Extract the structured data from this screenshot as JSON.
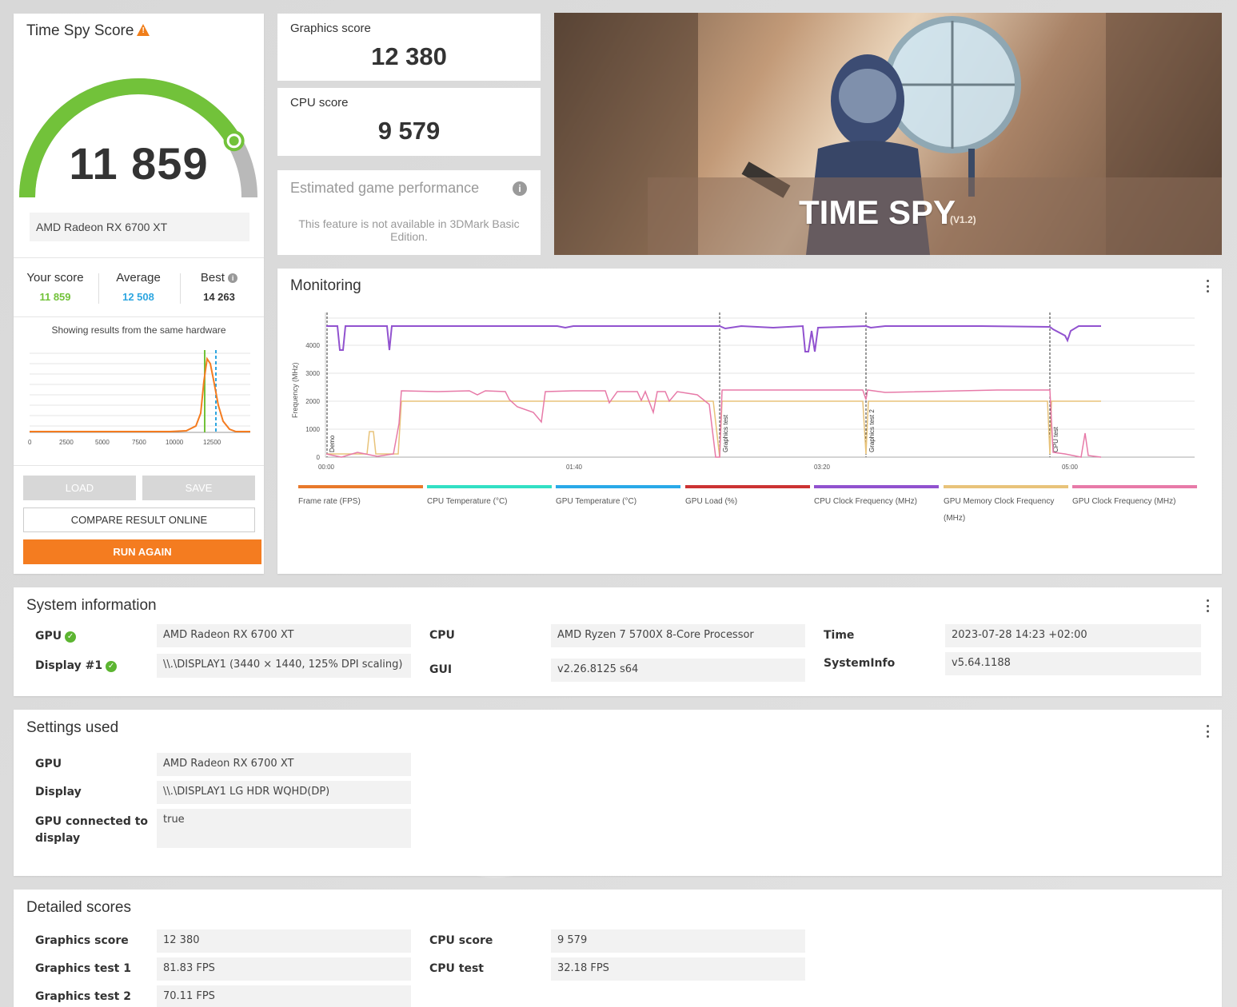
{
  "score_panel": {
    "title": "Time Spy Score",
    "score": "11 859",
    "gauge_fraction": 0.83,
    "gpu_name": "AMD Radeon RX 6700 XT",
    "your_score_label": "Your score",
    "your_score": "11 859",
    "average_label": "Average",
    "average": "12 508",
    "best_label": "Best",
    "best": "14 263",
    "showing_text": "Showing results from the same hardware",
    "histogram_ticks": [
      "0",
      "2500",
      "5000",
      "7500",
      "10000",
      "12500"
    ],
    "load_label": "LOAD",
    "save_label": "SAVE",
    "compare_label": "COMPARE RESULT ONLINE",
    "run_again_label": "RUN AGAIN",
    "colors": {
      "green": "#72c23a",
      "blue": "#2ea6e0",
      "orange": "#f47c20"
    }
  },
  "graphics_score": {
    "label": "Graphics score",
    "value": "12 380"
  },
  "cpu_score": {
    "label": "CPU score",
    "value": "9 579"
  },
  "estimated": {
    "label": "Estimated game performance",
    "message": "This feature is not available in 3DMark Basic Edition."
  },
  "hero": {
    "title": "TIME SPY",
    "version": "(V1.2)"
  },
  "monitoring": {
    "title": "Monitoring",
    "y_axis_label": "Frequency (MHz)",
    "y_ticks": [
      "0",
      "1000",
      "2000",
      "3000",
      "4000"
    ],
    "x_ticks": [
      "00:00",
      "01:40",
      "03:20",
      "05:00"
    ],
    "markers": [
      "Demo",
      "Graphics test",
      "Graphics test 2",
      "CPU test"
    ],
    "legend": [
      {
        "label": "Frame rate (FPS)",
        "color": "#e8792b"
      },
      {
        "label": "CPU Temperature (°C)",
        "color": "#32e0c4"
      },
      {
        "label": "GPU Temperature (°C)",
        "color": "#29a9e8"
      },
      {
        "label": "GPU Load (%)",
        "color": "#cc3333"
      },
      {
        "label": "CPU Clock Frequency (MHz)",
        "color": "#9152cf"
      },
      {
        "label": "GPU Memory Clock Frequency (MHz)",
        "color": "#e8c37a"
      },
      {
        "label": "GPU Clock Frequency (MHz)",
        "color": "#e77aa8"
      }
    ]
  },
  "system_info": {
    "title": "System information",
    "gpu_label": "GPU",
    "gpu_value": "AMD Radeon RX 6700 XT",
    "display_label": "Display #1",
    "display_value": "\\\\.\\DISPLAY1 (3440 × 1440, 125% DPI scaling)",
    "cpu_label": "CPU",
    "cpu_value": "AMD Ryzen 7 5700X 8-Core Processor",
    "gui_label": "GUI",
    "gui_value": "v2.26.8125 s64",
    "time_label": "Time",
    "time_value": "2023-07-28 14:23 +02:00",
    "sysinfo_label": "SystemInfo",
    "sysinfo_value": "v5.64.1188"
  },
  "settings": {
    "title": "Settings used",
    "gpu_label": "GPU",
    "gpu_value": "AMD Radeon RX 6700 XT",
    "display_label": "Display",
    "display_value": "\\\\.\\DISPLAY1 LG HDR WQHD(DP)",
    "connected_label_1": "GPU connected to",
    "connected_label_2": "display",
    "connected_value": "true"
  },
  "detailed": {
    "title": "Detailed scores",
    "graphics_score_label": "Graphics score",
    "graphics_score_value": "12 380",
    "graphics_test1_label": "Graphics test 1",
    "graphics_test1_value": "81.83 FPS",
    "graphics_test2_label": "Graphics test 2",
    "graphics_test2_value": "70.11 FPS",
    "cpu_score_label": "CPU score",
    "cpu_score_value": "9 579",
    "cpu_test_label": "CPU test",
    "cpu_test_value": "32.18 FPS"
  }
}
